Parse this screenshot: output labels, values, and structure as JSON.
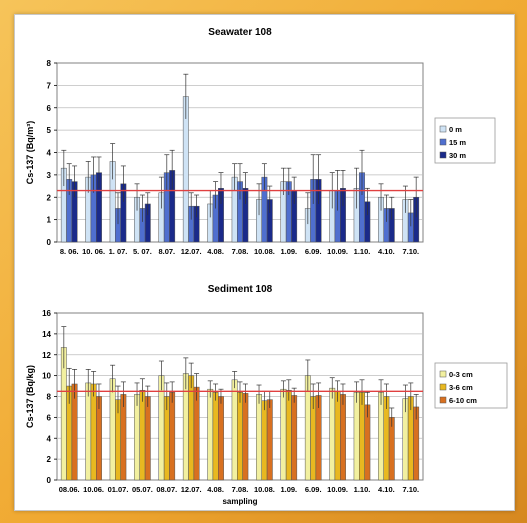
{
  "colors": {
    "seawater": [
      "#cfe3f5",
      "#4f6fcf",
      "#1a2a8a"
    ],
    "sediment": [
      "#f2f0a0",
      "#e8b820",
      "#d87020"
    ],
    "reference_line": "#e04040",
    "grid": "#bdbdbd"
  },
  "chart_data": [
    {
      "type": "bar",
      "title": "Seawater 108",
      "ylabel": "Cs-137 (Bq/m³)",
      "xlabel": "",
      "ylim": [
        0,
        8
      ],
      "yticks": [
        "0",
        "1",
        "2",
        "3",
        "4",
        "5",
        "6",
        "7",
        "8"
      ],
      "grid": true,
      "legend_position": "right",
      "reference_line": 2.3,
      "categories": [
        "8. 06.",
        "10. 06.",
        "1. 07.",
        "5. 07.",
        "8.07.",
        "12.07.",
        "4.08.",
        "7.08.",
        "10.08.",
        "1.09.",
        "6.09.",
        "10.09.",
        "1.10.",
        "4.10.",
        "7.10."
      ],
      "series": [
        {
          "name": "0 m",
          "values": [
            3.3,
            2.9,
            3.6,
            2.0,
            2.2,
            6.5,
            1.7,
            2.9,
            1.9,
            2.7,
            1.5,
            2.3,
            2.4,
            2.0,
            1.9
          ],
          "errors": [
            0.8,
            0.7,
            0.8,
            0.6,
            0.7,
            1.0,
            0.6,
            0.6,
            0.7,
            0.6,
            0.7,
            0.8,
            0.9,
            0.6,
            0.6
          ]
        },
        {
          "name": "15 m",
          "values": [
            2.8,
            3.0,
            1.5,
            1.5,
            3.1,
            1.6,
            2.1,
            2.7,
            2.9,
            2.7,
            2.8,
            2.3,
            3.1,
            1.5,
            1.3
          ],
          "errors": [
            0.7,
            0.8,
            0.7,
            0.6,
            0.8,
            0.6,
            0.6,
            0.8,
            0.6,
            0.6,
            1.1,
            0.9,
            1.0,
            0.6,
            0.6
          ]
        },
        {
          "name": "30 m",
          "values": [
            2.7,
            3.1,
            2.6,
            1.7,
            3.2,
            1.6,
            2.4,
            2.4,
            1.9,
            2.3,
            2.8,
            2.4,
            1.8,
            1.5,
            2.0
          ],
          "errors": [
            0.7,
            0.7,
            0.8,
            0.5,
            0.9,
            0.5,
            0.7,
            0.7,
            0.6,
            0.6,
            1.1,
            0.8,
            0.6,
            0.5,
            0.9
          ]
        }
      ]
    },
    {
      "type": "bar",
      "title": "Sediment 108",
      "ylabel": "Cs-137 (Bq/kg)",
      "xlabel": "sampling",
      "ylim": [
        0,
        16
      ],
      "yticks": [
        "0",
        "2",
        "4",
        "6",
        "8",
        "10",
        "12",
        "14",
        "16"
      ],
      "grid": true,
      "legend_position": "right",
      "reference_line": 8.5,
      "categories": [
        "08.06.",
        "10.06.",
        "01.07.",
        "05.07.",
        "08.07.",
        "12.07.",
        "4.08.",
        "7.08.",
        "10.08.",
        "1.09.",
        "6.09.",
        "10.09.",
        "1.10.",
        "4.10.",
        "7.10."
      ],
      "series": [
        {
          "name": "0-3 cm",
          "values": [
            12.7,
            9.3,
            9.7,
            8.2,
            10.0,
            10.2,
            8.7,
            9.6,
            8.2,
            8.7,
            10.0,
            8.8,
            8.4,
            8.4,
            7.8
          ],
          "errors": [
            2.0,
            1.3,
            1.3,
            1.1,
            1.4,
            1.5,
            0.8,
            0.8,
            0.9,
            0.8,
            1.5,
            1.0,
            1.0,
            1.2,
            1.3
          ]
        },
        {
          "name": "3-6 cm",
          "values": [
            9.0,
            9.2,
            7.7,
            8.6,
            8.0,
            10.0,
            8.4,
            8.4,
            7.6,
            8.6,
            8.0,
            8.5,
            8.4,
            8.0,
            8.0
          ],
          "errors": [
            1.7,
            1.2,
            1.3,
            1.1,
            1.3,
            1.2,
            0.8,
            1.0,
            0.9,
            1.0,
            1.2,
            1.0,
            1.2,
            1.2,
            1.3
          ]
        },
        {
          "name": "6-10 cm",
          "values": [
            9.2,
            8.0,
            8.2,
            8.0,
            8.4,
            8.9,
            8.0,
            8.3,
            7.7,
            8.1,
            8.1,
            8.2,
            7.2,
            6.0,
            7.0
          ],
          "errors": [
            1.4,
            1.2,
            1.2,
            1.0,
            1.0,
            1.3,
            0.7,
            0.9,
            0.8,
            0.7,
            1.2,
            1.0,
            1.2,
            0.9,
            1.2
          ]
        }
      ]
    }
  ]
}
